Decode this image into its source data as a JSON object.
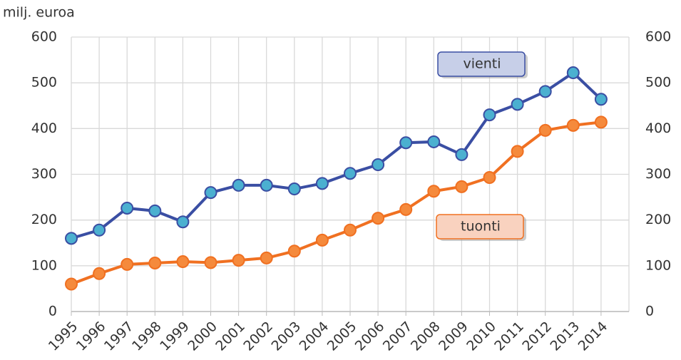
{
  "chart_data": {
    "type": "line",
    "y_label": "milj. euroa",
    "categories": [
      "1995",
      "1996",
      "1997",
      "1998",
      "1999",
      "2000",
      "2001",
      "2002",
      "2003",
      "2004",
      "2005",
      "2006",
      "2007",
      "2008",
      "2009",
      "2010",
      "2011",
      "2012",
      "2013",
      "2014"
    ],
    "series": [
      {
        "name": "vienti",
        "color": "#3a4ea3",
        "marker_color": "#4bb0d0",
        "legend_fill": "#c7cfe8",
        "values": [
          160,
          178,
          226,
          220,
          196,
          260,
          276,
          276,
          268,
          280,
          302,
          321,
          369,
          371,
          343,
          430,
          453,
          481,
          522,
          464
        ]
      },
      {
        "name": "tuonti",
        "color": "#f07021",
        "marker_color": "#f58a3c",
        "legend_fill": "#f9d2bf",
        "values": [
          60,
          83,
          103,
          106,
          109,
          107,
          112,
          117,
          132,
          156,
          178,
          204,
          223,
          263,
          273,
          293,
          350,
          396,
          407,
          414
        ]
      }
    ],
    "ylim": [
      0,
      600
    ],
    "yticks": [
      0,
      100,
      200,
      300,
      400,
      500,
      600
    ],
    "y2lim": [
      0,
      600
    ],
    "y2ticks": [
      0,
      100,
      200,
      300,
      400,
      500,
      600
    ],
    "grid": true
  }
}
